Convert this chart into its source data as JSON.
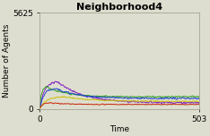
{
  "title": "Neighborhood4",
  "xlabel": "Time",
  "ylabel": "Number of Agents",
  "xlim": [
    0,
    503
  ],
  "ylim": [
    0,
    5625
  ],
  "yticks": [
    0,
    5625
  ],
  "xticks": [
    0,
    503
  ],
  "background_color": "#deded0",
  "line_configs": [
    {
      "name": "purple",
      "color": "#8020c0",
      "peak_time": 55,
      "peak_val": 1600,
      "settle_val": 350,
      "decay_tau": 80,
      "noise": 45
    },
    {
      "name": "green",
      "color": "#30a020",
      "peak_time": 20,
      "peak_val": 1300,
      "settle_val": 700,
      "decay_tau": 60,
      "noise": 35
    },
    {
      "name": "blue",
      "color": "#2040d0",
      "peak_time": 50,
      "peak_val": 1200,
      "settle_val": 600,
      "decay_tau": 70,
      "noise": 35
    },
    {
      "name": "yellow",
      "color": "#c8c000",
      "peak_time": 75,
      "peak_val": 700,
      "settle_val": 430,
      "decay_tau": 90,
      "noise": 25
    },
    {
      "name": "red",
      "color": "#c82000",
      "peak_time": 30,
      "peak_val": 350,
      "settle_val": 250,
      "decay_tau": 50,
      "noise": 20
    }
  ],
  "n_points": 504,
  "title_fontsize": 8,
  "label_fontsize": 6.5,
  "tick_fontsize": 6.5,
  "linewidth": 0.7
}
